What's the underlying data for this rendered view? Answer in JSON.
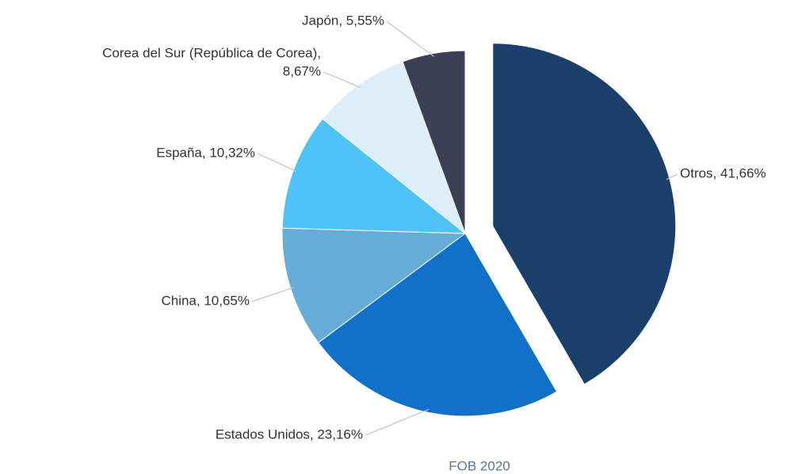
{
  "chart_data": {
    "type": "pie",
    "title": "FOB 2020",
    "values": [
      41.66,
      23.16,
      10.65,
      10.32,
      8.67,
      5.55
    ],
    "value_labels": [
      [
        "Otros, 41,66%"
      ],
      [
        "Estados Unidos, 23,16%"
      ],
      [
        "China, 10,65%"
      ],
      [
        "España, 10,32%"
      ],
      [
        "Corea del Sur (República de Corea),",
        "8,67%"
      ],
      [
        "Japón, 5,55%"
      ]
    ],
    "colors": [
      "#1a3f6b",
      "#1170c8",
      "#66acd8",
      "#4fc3f7",
      "#dbeef9",
      "#3d3f56"
    ],
    "exploded": [
      true,
      false,
      false,
      false,
      false,
      false
    ]
  }
}
